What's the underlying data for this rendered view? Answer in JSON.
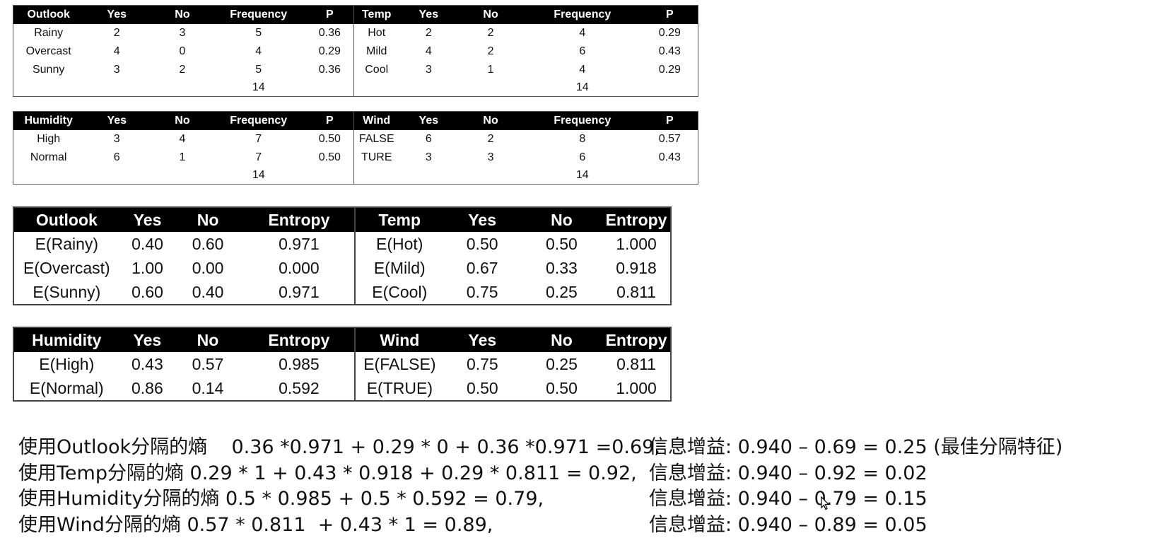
{
  "frequency_tables": [
    {
      "headers": [
        "Outlook",
        "Yes",
        "No",
        "Frequency",
        "P"
      ],
      "rows": [
        [
          "Rainy",
          "2",
          "3",
          "5",
          "0.36"
        ],
        [
          "Overcast",
          "4",
          "0",
          "4",
          "0.29"
        ],
        [
          "Sunny",
          "3",
          "2",
          "5",
          "0.36"
        ]
      ],
      "total": "14"
    },
    {
      "headers": [
        "Temp",
        "Yes",
        "No",
        "Frequency",
        "P"
      ],
      "rows": [
        [
          "Hot",
          "2",
          "2",
          "4",
          "0.29"
        ],
        [
          "Mild",
          "4",
          "2",
          "6",
          "0.43"
        ],
        [
          "Cool",
          "3",
          "1",
          "4",
          "0.29"
        ]
      ],
      "total": "14"
    },
    {
      "headers": [
        "Humidity",
        "Yes",
        "No",
        "Frequency",
        "P"
      ],
      "rows": [
        [
          "High",
          "3",
          "4",
          "7",
          "0.50"
        ],
        [
          "Normal",
          "6",
          "1",
          "7",
          "0.50"
        ]
      ],
      "total": "14"
    },
    {
      "headers": [
        "Wind",
        "Yes",
        "No",
        "Frequency",
        "P"
      ],
      "rows": [
        [
          "FALSE",
          "6",
          "2",
          "8",
          "0.57"
        ],
        [
          "TURE",
          "3",
          "3",
          "6",
          "0.43"
        ]
      ],
      "total": "14"
    }
  ],
  "entropy_tables": [
    {
      "headers": [
        "Outlook",
        "Yes",
        "No",
        "Entropy"
      ],
      "rows": [
        [
          "E(Rainy)",
          "0.40",
          "0.60",
          "0.971"
        ],
        [
          "E(Overcast)",
          "1.00",
          "0.00",
          "0.000"
        ],
        [
          "E(Sunny)",
          "0.60",
          "0.40",
          "0.971"
        ]
      ]
    },
    {
      "headers": [
        "Temp",
        "Yes",
        "No",
        "Entropy"
      ],
      "rows": [
        [
          "E(Hot)",
          "0.50",
          "0.50",
          "1.000"
        ],
        [
          "E(Mild)",
          "0.67",
          "0.33",
          "0.918"
        ],
        [
          "E(Cool)",
          "0.75",
          "0.25",
          "0.811"
        ]
      ]
    },
    {
      "headers": [
        "Humidity",
        "Yes",
        "No",
        "Entropy"
      ],
      "rows": [
        [
          "E(High)",
          "0.43",
          "0.57",
          "0.985"
        ],
        [
          "E(Normal)",
          "0.86",
          "0.14",
          "0.592"
        ]
      ]
    },
    {
      "headers": [
        "Wind",
        "Yes",
        "No",
        "Entropy"
      ],
      "rows": [
        [
          "E(FALSE)",
          "0.75",
          "0.25",
          "0.811"
        ],
        [
          "E(TRUE)",
          "0.50",
          "0.50",
          "1.000"
        ]
      ]
    }
  ],
  "calculations": [
    {
      "left": "使用Outlook分隔的熵    0.36 *0.971 + 0.29 * 0 + 0.36 *0.971 =0.69,",
      "right": "信息增益: 0.940 – 0.69 = 0.25 (最佳分隔特征)"
    },
    {
      "left": "使用Temp分隔的熵 0.29 * 1 + 0.43 * 0.918 + 0.29 * 0.811 = 0.92,",
      "right": "信息增益: 0.940 – 0.92 = 0.02"
    },
    {
      "left": "使用Humidity分隔的熵 0.5 * 0.985 + 0.5 * 0.592 = 0.79,",
      "right": "信息增益: 0.940 – 0.79 = 0.15"
    },
    {
      "left": "使用Wind分隔的熵 0.57 * 0.811  + 0.43 * 1 = 0.89,",
      "right": "信息增益: 0.940 – 0.89 = 0.05"
    }
  ],
  "icons": {
    "cursor": "mouse-pointer-icon"
  }
}
